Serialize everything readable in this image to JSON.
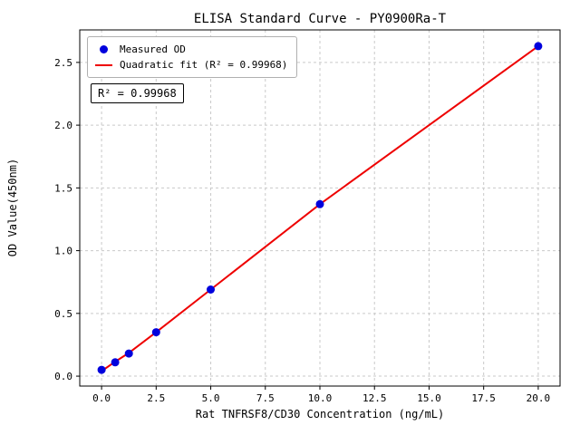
{
  "chart_data": {
    "type": "scatter",
    "title": "ELISA Standard Curve - PY0900Ra-T",
    "xlabel": "Rat TNFRSF8/CD30 Concentration (ng/mL)",
    "ylabel": "OD Value(450nm)",
    "xlim": [
      -1.0,
      21.0
    ],
    "ylim": [
      -0.079,
      2.759
    ],
    "xticks": [
      0.0,
      2.5,
      5.0,
      7.5,
      10.0,
      12.5,
      15.0,
      17.5,
      20.0
    ],
    "yticks": [
      0.0,
      0.5,
      1.0,
      1.5,
      2.0,
      2.5
    ],
    "grid": true,
    "legend_position": "upper left",
    "annotation": "R² = 0.99968",
    "series": [
      {
        "name": "Measured OD",
        "type": "scatter",
        "color": "#0000dd",
        "x": [
          0,
          0.625,
          1.25,
          2.5,
          5,
          10,
          20
        ],
        "y": [
          0.05,
          0.11,
          0.18,
          0.35,
          0.69,
          1.37,
          2.63
        ]
      },
      {
        "name": "Quadratic fit (R² = 0.99968)",
        "type": "line",
        "color": "#ee0000",
        "x": [
          0,
          0.625,
          1.25,
          2.5,
          5,
          10,
          20
        ],
        "y": [
          0.04,
          0.115,
          0.185,
          0.35,
          0.69,
          1.37,
          2.63
        ]
      }
    ]
  }
}
